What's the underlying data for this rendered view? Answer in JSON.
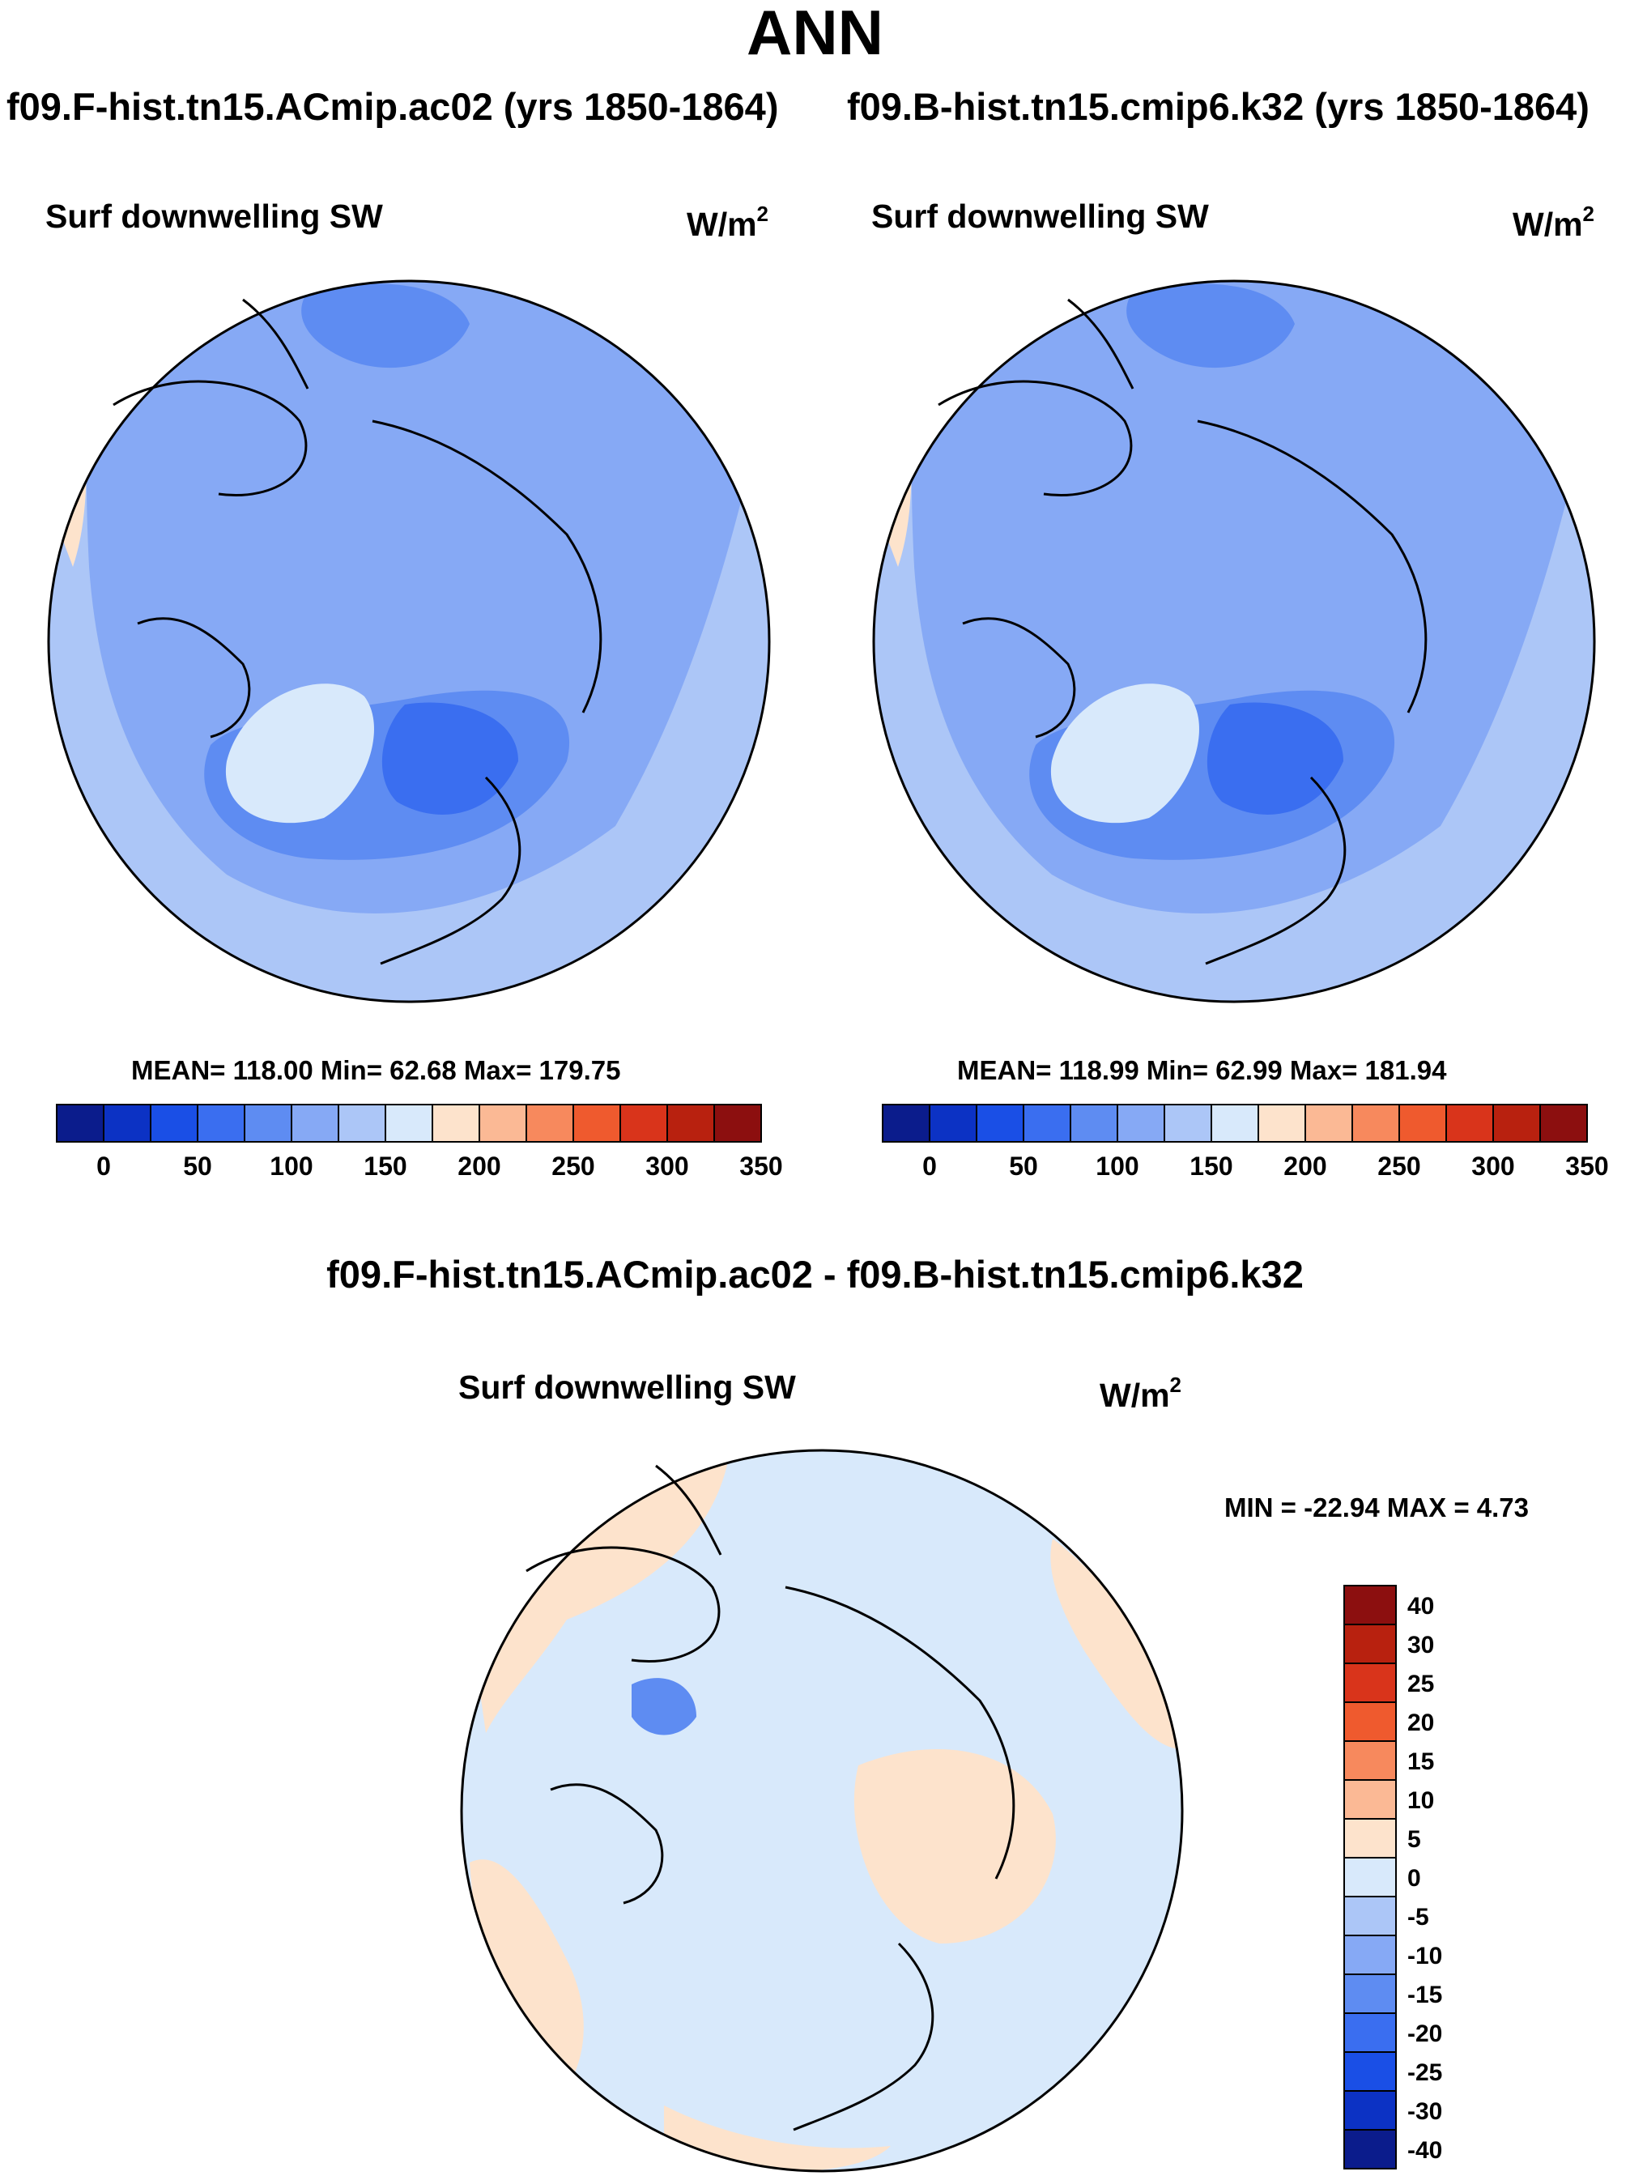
{
  "title": "ANN",
  "left_panel": {
    "case": "f09.F-hist.tn15.ACmip.ac02 (yrs 1850-1864)",
    "variable": "Surf downwelling SW",
    "units_base": "W/m",
    "units_exp": "2",
    "stats": "MEAN= 118.00  Min=  62.68  Max= 179.75"
  },
  "right_panel": {
    "case": "f09.B-hist.tn15.cmip6.k32 (yrs 1850-1864)",
    "variable": "Surf downwelling SW",
    "units_base": "W/m",
    "units_exp": "2",
    "stats": "MEAN= 118.99  Min=  62.99  Max= 181.94"
  },
  "diff_panel": {
    "case": "f09.F-hist.tn15.ACmip.ac02 - f09.B-hist.tn15.cmip6.k32",
    "variable": "Surf downwelling SW",
    "units_base": "W/m",
    "units_exp": "2",
    "stats": "MIN = -22.94 MAX =   4.73"
  },
  "colorbar_abs": {
    "colors": [
      "#0b1c8c",
      "#0c32c4",
      "#1a4fe6",
      "#3a6ef0",
      "#5e8cf2",
      "#86a9f5",
      "#acc6f7",
      "#d8e9fb",
      "#fde3cc",
      "#fbb995",
      "#f7895d",
      "#ef5a2e",
      "#d9341b",
      "#b8210f",
      "#8c0f0f"
    ],
    "tick_labels": [
      "0",
      "50",
      "100",
      "150",
      "200",
      "250",
      "300",
      "350"
    ]
  },
  "colorbar_diff": {
    "colors": [
      "#0b1c8c",
      "#0c32c4",
      "#1a4fe6",
      "#3a6ef0",
      "#5e8cf2",
      "#86a9f5",
      "#acc6f7",
      "#d8e9fb",
      "#fde3cc",
      "#fbb995",
      "#f7895d",
      "#ef5a2e",
      "#d9341b",
      "#b8210f",
      "#8c0f0f"
    ],
    "tick_labels": [
      "40",
      "30",
      "25",
      "20",
      "15",
      "10",
      "5",
      "0",
      "-5",
      "-10",
      "-15",
      "-20",
      "-25",
      "-30",
      "-40"
    ]
  }
}
